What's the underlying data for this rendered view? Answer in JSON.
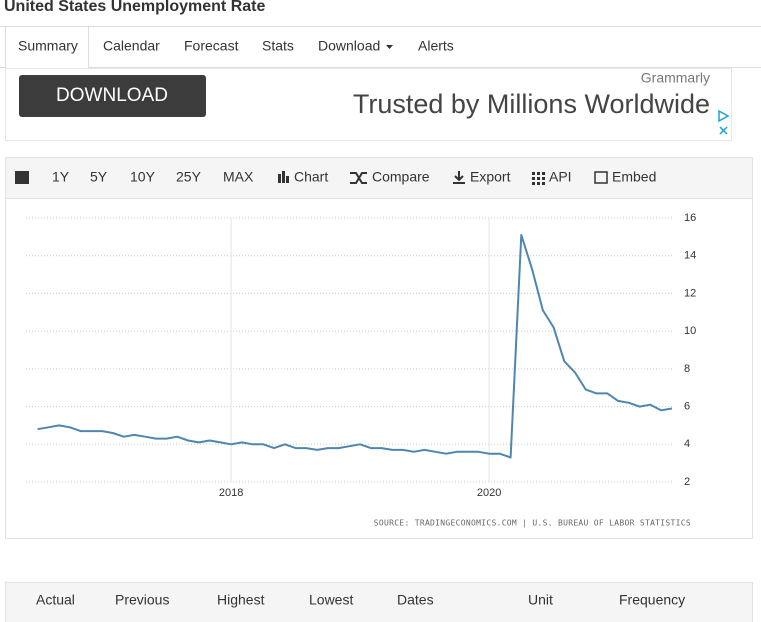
{
  "header": {
    "title": "United States Unemployment Rate"
  },
  "tabs": [
    "Summary",
    "Calendar",
    "Forecast",
    "Stats",
    "Download",
    "Alerts"
  ],
  "ad": {
    "button": "DOWNLOAD",
    "brand": "Grammarly",
    "headline": "Trusted by Millions Worldwide"
  },
  "toolbar": [
    "1Y",
    "5Y",
    "10Y",
    "25Y",
    "MAX",
    "Chart",
    "Compare",
    "Export",
    "API",
    "Embed"
  ],
  "chart": {
    "type": "line",
    "color": "#4e86b0",
    "x": [
      2016.5,
      2016.583,
      2016.667,
      2016.75,
      2016.833,
      2016.917,
      2017.0,
      2017.083,
      2017.167,
      2017.25,
      2017.333,
      2017.417,
      2017.5,
      2017.583,
      2017.667,
      2017.75,
      2017.833,
      2017.917,
      2018.0,
      2018.083,
      2018.167,
      2018.25,
      2018.333,
      2018.417,
      2018.5,
      2018.583,
      2018.667,
      2018.75,
      2018.833,
      2018.917,
      2019.0,
      2019.083,
      2019.167,
      2019.25,
      2019.333,
      2019.417,
      2019.5,
      2019.583,
      2019.667,
      2019.75,
      2019.833,
      2019.917,
      2020.0,
      2020.083,
      2020.167,
      2020.25,
      2020.333,
      2020.417,
      2020.5,
      2020.583,
      2020.667,
      2020.75,
      2020.833,
      2020.917,
      2021.0,
      2021.083,
      2021.167,
      2021.25,
      2021.333,
      2021.417
    ],
    "values": [
      4.8,
      4.9,
      5.0,
      4.9,
      4.7,
      4.7,
      4.7,
      4.6,
      4.4,
      4.5,
      4.4,
      4.3,
      4.3,
      4.4,
      4.2,
      4.1,
      4.2,
      4.1,
      4.0,
      4.1,
      4.0,
      4.0,
      3.8,
      4.0,
      3.8,
      3.8,
      3.7,
      3.8,
      3.8,
      3.9,
      4.0,
      3.8,
      3.8,
      3.7,
      3.7,
      3.6,
      3.7,
      3.6,
      3.5,
      3.6,
      3.6,
      3.6,
      3.5,
      3.5,
      3.3,
      15.1,
      13.3,
      11.1,
      10.2,
      8.4,
      7.8,
      6.9,
      6.7,
      6.7,
      6.3,
      6.2,
      6.0,
      6.1,
      5.8,
      5.9
    ],
    "xlim": [
      2016.41,
      2021.48
    ],
    "xticks": [
      2018,
      2020
    ],
    "ylim": [
      2,
      16
    ],
    "yticks": [
      2,
      4,
      6,
      8,
      10,
      12,
      14,
      16
    ],
    "source": "SOURCE: TRADINGECONOMICS.COM | U.S. BUREAU OF LABOR STATISTICS"
  },
  "table": {
    "headers": [
      "Actual",
      "Previous",
      "Highest",
      "Lowest",
      "Dates",
      "Unit",
      "Frequency"
    ]
  }
}
